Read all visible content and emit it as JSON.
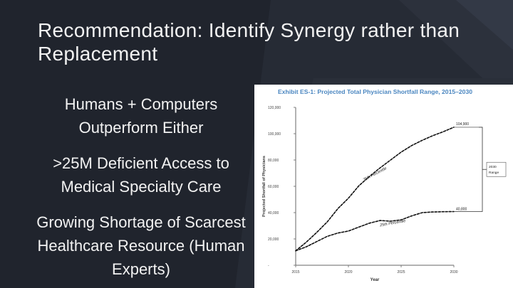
{
  "slide": {
    "title": "Recommendation: Identify Synergy rather than Replacement",
    "bullets": [
      "Humans + Computers Outperform Either",
      ">25M Deficient Access to Medical Specialty Care",
      "Growing Shortage of Scarcest Healthcare Resource (Human Experts)"
    ],
    "colors": {
      "background": "#20242d",
      "text": "#f2f2f2",
      "chart_title": "#4a86c0"
    }
  },
  "chart_data": {
    "type": "line",
    "title": "Exhibit ES-1: Projected Total Physician Shortfall Range, 2015–2030",
    "xlabel": "Year",
    "ylabel": "Projected Shortfall of Physicians",
    "xlim": [
      2015,
      2030
    ],
    "ylim": [
      0,
      120000
    ],
    "x_ticks": [
      "2015",
      "2020",
      "2025",
      "2030"
    ],
    "y_ticks": [
      "-",
      "20,000",
      "40,000",
      "60,000",
      "80,000",
      "100,000",
      "120,000"
    ],
    "grid": false,
    "series": [
      {
        "name": "75th Percentile",
        "x": [
          2015,
          2016,
          2017,
          2018,
          2019,
          2020,
          2021,
          2022,
          2023,
          2024,
          2025,
          2026,
          2027,
          2028,
          2029,
          2030
        ],
        "values": [
          11000,
          17500,
          25000,
          33000,
          43000,
          51000,
          60500,
          67500,
          74000,
          80000,
          86000,
          91000,
          95000,
          98500,
          101500,
          104900
        ]
      },
      {
        "name": "25th Percentile",
        "x": [
          2015,
          2016,
          2017,
          2018,
          2019,
          2020,
          2021,
          2022,
          2023,
          2024,
          2025,
          2026,
          2027,
          2028,
          2029,
          2030
        ],
        "values": [
          11000,
          14000,
          18000,
          22000,
          24500,
          26000,
          29000,
          32000,
          34000,
          33500,
          34500,
          37500,
          40000,
          40500,
          40700,
          40800
        ]
      }
    ],
    "annotations": {
      "end_high": "104,900",
      "end_low": "40,800",
      "range_label": "2030 Range"
    }
  }
}
